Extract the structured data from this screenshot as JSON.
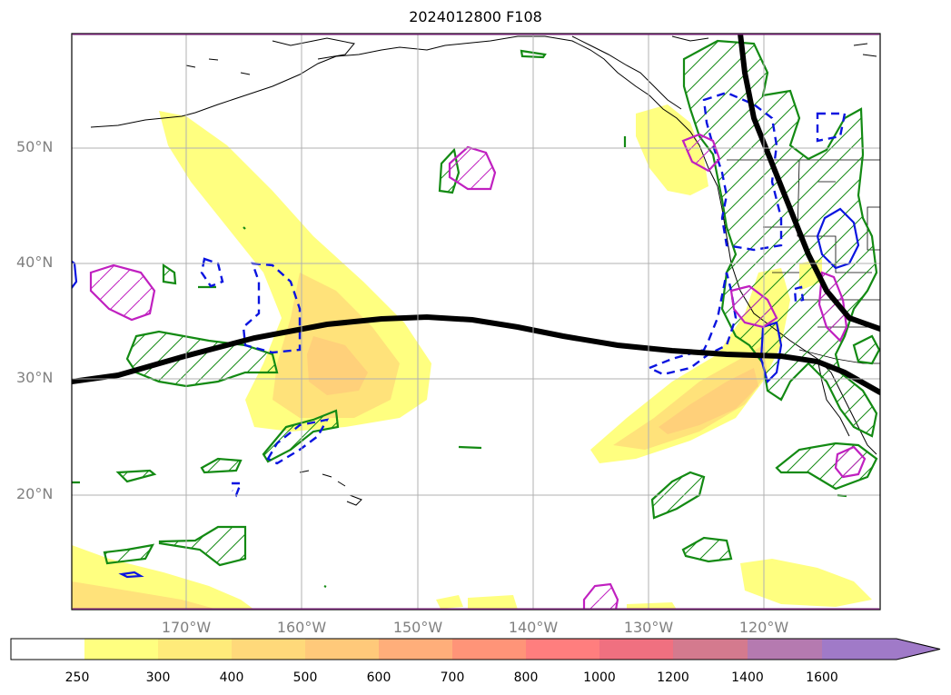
{
  "title": "2024012800 F108",
  "lat_labels": [
    "50°N",
    "40°N",
    "30°N",
    "20°N"
  ],
  "lon_labels": [
    "170°W",
    "160°W",
    "150°W",
    "140°W",
    "130°W",
    "120°W"
  ],
  "colorbar": {
    "levels": [
      "250",
      "300",
      "400",
      "500",
      "600",
      "700",
      "800",
      "1000",
      "1200",
      "1400",
      "1600"
    ],
    "colors": [
      "#ffffff",
      "#ffff80",
      "#ffeb7a",
      "#ffd97a",
      "#ffc97a",
      "#ffae7a",
      "#ff9478",
      "#ff7e7e",
      "#f07080",
      "#d47a8e",
      "#b57ab0",
      "#a07ac8"
    ]
  }
}
